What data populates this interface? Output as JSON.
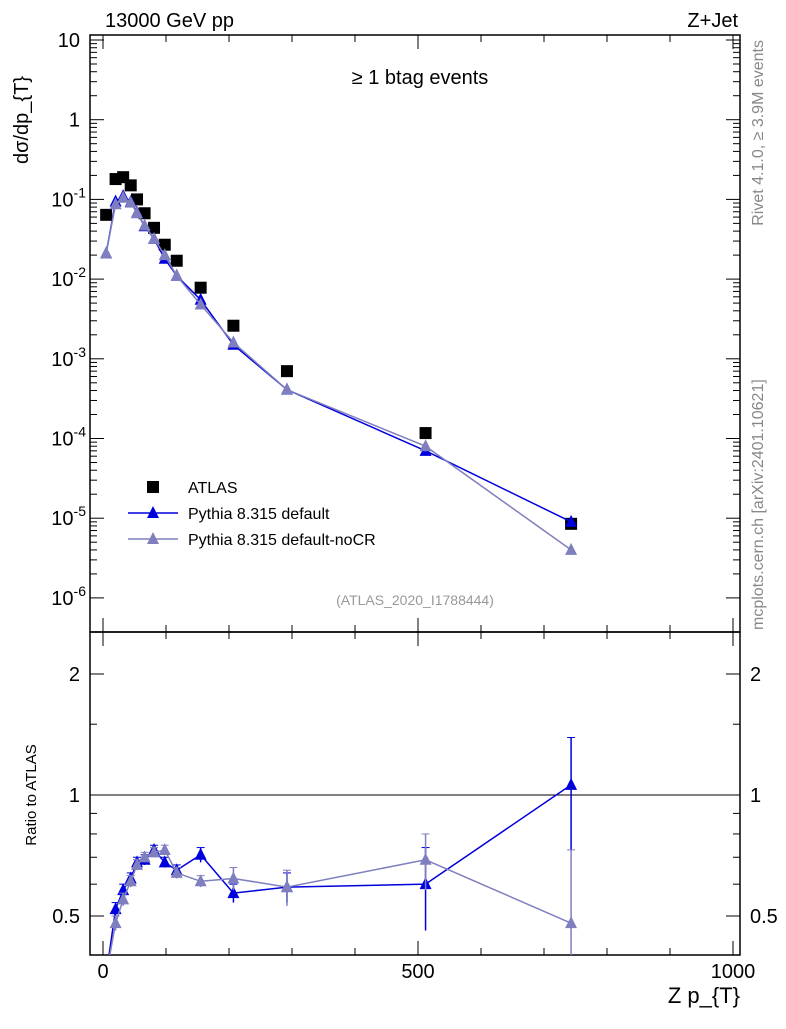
{
  "header": {
    "left": "13000 GeV pp",
    "right": "Z+Jet"
  },
  "side": {
    "top": "Rivet 4.1.0, ≥ 3.9M events",
    "bottom": "mcplots.cern.ch [arXiv:2401.10621]"
  },
  "chart_data": [
    {
      "type": "scatter",
      "title": "≥ 1 btag events",
      "analysis": "(ATLAS_2020_I1788444)",
      "ylabel": "dσ/dp_{T}",
      "xlabel": "Z p_{T}",
      "yscale": "log",
      "ylim": [
        1e-06,
        10
      ],
      "xlim": [
        -20,
        1000
      ],
      "yticks": [
        "10^{-6}",
        "10^{-5}",
        "10^{-4}",
        "10^{-3}",
        "10^{-2}",
        "10^{-1}",
        "1",
        "10"
      ],
      "x": [
        5,
        20,
        32,
        44,
        54,
        66,
        81,
        98,
        117,
        155,
        207,
        292,
        512,
        743
      ],
      "series": [
        {
          "name": "ATLAS",
          "color": "#000000",
          "marker": "square",
          "values": [
            0.064,
            0.18,
            0.19,
            0.15,
            0.1,
            0.067,
            0.044,
            0.027,
            0.017,
            0.0078,
            0.0026,
            0.0007,
            0.000117,
            8.5e-06
          ]
        },
        {
          "name": "Pythia 8.315 default",
          "color": "#0000dd",
          "marker": "triangle",
          "values": [
            0.021,
            0.094,
            0.11,
            0.093,
            0.068,
            0.046,
            0.032,
            0.018,
            0.011,
            0.0055,
            0.0015,
            0.00041,
            7e-05,
            9e-06
          ]
        },
        {
          "name": "Pythia 8.315 default-noCR",
          "color": "#7f7fbf",
          "marker": "triangle",
          "values": [
            0.021,
            0.087,
            0.105,
            0.091,
            0.067,
            0.047,
            0.032,
            0.02,
            0.011,
            0.0048,
            0.0016,
            0.00041,
            8e-05,
            4e-06
          ]
        }
      ]
    },
    {
      "type": "line",
      "ylabel": "Ratio to ATLAS",
      "yscale": "log",
      "ylim": [
        0.4,
        2.5
      ],
      "xticks": [
        "0",
        "500",
        "1000"
      ],
      "yticks": [
        "0.5",
        "1",
        "2"
      ],
      "x": [
        5,
        20,
        32,
        44,
        54,
        66,
        81,
        98,
        117,
        155,
        207,
        292,
        512,
        743
      ],
      "series": [
        {
          "name": "Pythia 8.315 default",
          "color": "#0000dd",
          "values": [
            0.33,
            0.52,
            0.58,
            0.62,
            0.68,
            0.69,
            0.73,
            0.68,
            0.65,
            0.71,
            0.57,
            0.59,
            0.6,
            1.06
          ],
          "err": [
            0.02,
            0.02,
            0.02,
            0.02,
            0.02,
            0.02,
            0.02,
            0.02,
            0.02,
            0.03,
            0.03,
            0.05,
            0.14,
            0.33
          ]
        },
        {
          "name": "Pythia 8.315 default-noCR",
          "color": "#7f7fbf",
          "values": [
            0.33,
            0.48,
            0.55,
            0.61,
            0.67,
            0.7,
            0.72,
            0.73,
            0.64,
            0.61,
            0.62,
            0.59,
            0.69,
            0.48
          ],
          "err": [
            0.02,
            0.02,
            0.02,
            0.02,
            0.02,
            0.02,
            0.02,
            0.02,
            0.02,
            0.02,
            0.04,
            0.06,
            0.11,
            0.25
          ]
        }
      ]
    }
  ]
}
